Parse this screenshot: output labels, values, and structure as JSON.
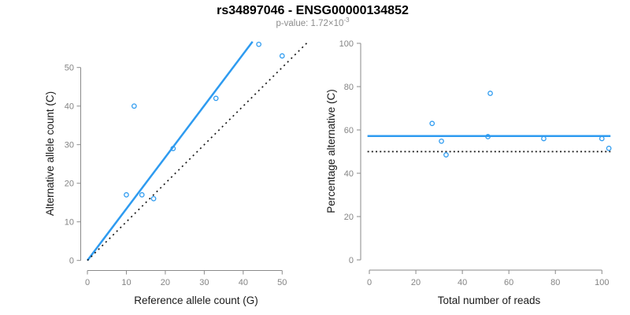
{
  "figure": {
    "title": "rs34897046 - ENSG00000134852",
    "subtitle": {
      "prefix": "p-value: 1.72×10",
      "exponent": "-3"
    }
  },
  "colors": {
    "accent_blue": "#2E9BF0",
    "line_black": "#1a1a1a",
    "axis_gray": "#8a8a8a",
    "tick_label_gray": "#848484",
    "axis_label_color": "#1a1a1a",
    "subtitle_gray": "#8c8c8c",
    "title_color": "#000000",
    "background": "#ffffff"
  },
  "chart_data": [
    {
      "id": "allele-count-scatter",
      "type": "scatter",
      "title": "",
      "xlabel": "Reference allele count (G)",
      "ylabel": "Alternative allele count (C)",
      "xticks": [
        0,
        10,
        20,
        30,
        40,
        50
      ],
      "yticks": [
        0,
        10,
        20,
        30,
        40,
        50
      ],
      "xlim": [
        -2.3,
        57.5
      ],
      "ylim": [
        -2.3,
        57.5
      ],
      "grid": false,
      "marker": "open-circle",
      "points": [
        [
          10,
          17
        ],
        [
          12,
          40
        ],
        [
          14,
          17
        ],
        [
          17,
          16
        ],
        [
          22,
          29
        ],
        [
          33,
          42
        ],
        [
          44,
          56
        ],
        [
          50,
          53
        ]
      ],
      "lines": [
        {
          "name": "fit-line",
          "style": "solid",
          "color_key": "accent_blue",
          "slope": 1.337,
          "intercept": 0,
          "segment": [
            [
              0,
              0
            ],
            [
              42.4,
              56.7
            ]
          ]
        },
        {
          "name": "identity-line",
          "style": "dotted",
          "color_key": "line_black",
          "slope": 1,
          "intercept": 0,
          "segment": [
            [
              0,
              0
            ],
            [
              56.5,
              56.5
            ]
          ]
        }
      ]
    },
    {
      "id": "percentage-scatter",
      "type": "scatter",
      "title": "",
      "xlabel": "Total number of reads",
      "ylabel": "Percentage alternative (C)",
      "xticks": [
        0,
        20,
        40,
        60,
        80,
        100
      ],
      "yticks": [
        0,
        20,
        40,
        60,
        80,
        100
      ],
      "xlim": [
        -4.1,
        107.1
      ],
      "ylim": [
        -4,
        104
      ],
      "grid": false,
      "marker": "open-circle",
      "points": [
        [
          27,
          63.0
        ],
        [
          31,
          54.8
        ],
        [
          33,
          48.5
        ],
        [
          51,
          56.9
        ],
        [
          52,
          76.9
        ],
        [
          75,
          56.0
        ],
        [
          100,
          56.0
        ],
        [
          103,
          51.5
        ]
      ],
      "lines": [
        {
          "name": "mean-percentage-line",
          "style": "solid",
          "color_key": "accent_blue",
          "y": 57.2,
          "segment": [
            [
              -0.8,
              57.2
            ],
            [
              103.7,
              57.2
            ]
          ]
        },
        {
          "name": "fifty-percent-line",
          "style": "dotted",
          "color_key": "line_black",
          "y": 50,
          "segment": [
            [
              -0.8,
              50
            ],
            [
              103.7,
              50
            ]
          ]
        }
      ]
    }
  ]
}
